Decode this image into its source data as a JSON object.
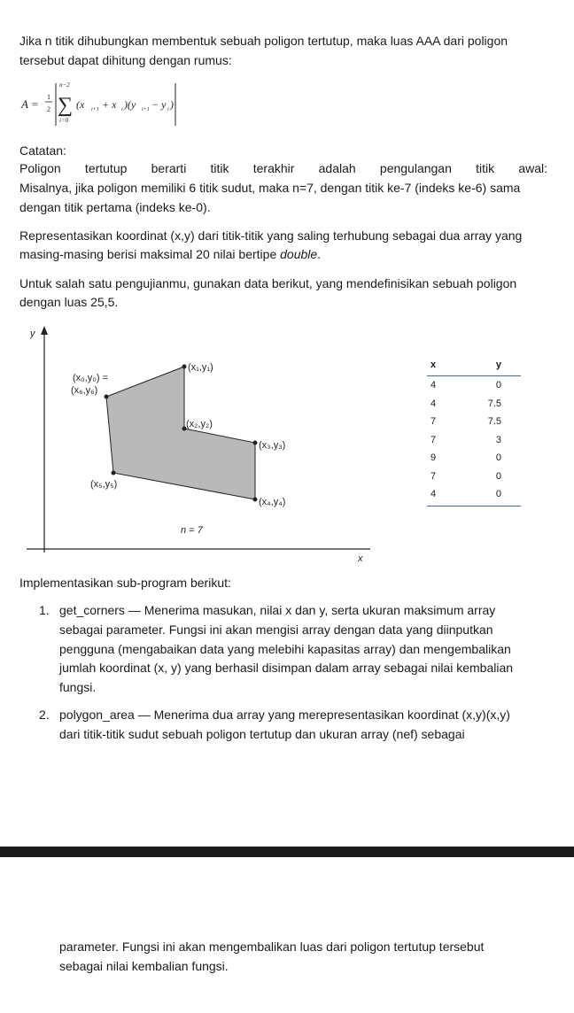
{
  "intro": {
    "line1": "Jika n titik dihubungkan membentuk sebuah poligon tertutup, maka luas AAA dari poligon",
    "line2": "tersebut dapat dihitung dengan rumus:"
  },
  "formula": {
    "lhs": "A =",
    "frac_num": "1",
    "frac_den": "2",
    "sum_upper": "n−2",
    "sum_lower": "i=0",
    "term": "(x",
    "sub_i1": "i+1",
    "plus": " + x",
    "sub_i": "i",
    "mid": ")(y",
    "minus": " − y",
    "close": ")"
  },
  "note": {
    "title": "Catatan:",
    "line1": "Poligon tertutup berarti titik terakhir adalah pengulangan titik awal:",
    "line2": "Misalnya, jika poligon memiliki 6 titik sudut, maka n=7, dengan titik ke-7 (indeks ke-6) sama",
    "line3": "dengan titik pertama (indeks ke-0)."
  },
  "represent": {
    "line1": "Representasikan koordinat (x,y) dari titik-titik yang saling terhubung sebagai dua array yang",
    "line2_pre": "masing-masing berisi maksimal 20 nilai bertipe ",
    "line2_em": "double",
    "line2_post": "."
  },
  "test": {
    "line1": "Untuk salah satu pengujianmu, gunakan data berikut, yang mendefinisikan sebuah poligon",
    "line2": "dengan luas 25,5."
  },
  "diagram": {
    "axis_y": "y",
    "axis_x": "x",
    "n_label": "n = 7",
    "labels": {
      "p0a": "(x₀,y₀) =",
      "p0b": "(x₆,y₆)",
      "p1": "(x₁,y₁)",
      "p2": "(x₂,y₂)",
      "p3": "(x₃,y₃)",
      "p4": "(x₄,y₄)",
      "p5": "(x₅,y₅)"
    },
    "fill_color": "#b9b9b9"
  },
  "table": {
    "headers": [
      "x",
      "y"
    ],
    "rows": [
      [
        "4",
        "0"
      ],
      [
        "4",
        "7.5"
      ],
      [
        "7",
        "7.5"
      ],
      [
        "7",
        "3"
      ],
      [
        "9",
        "0"
      ],
      [
        "7",
        "0"
      ],
      [
        "4",
        "0"
      ]
    ],
    "accent": "#3a6ea5"
  },
  "implement": {
    "title": "Implementasikan sub-program berikut:",
    "item1": {
      "num": "1.",
      "lines": [
        "get_corners — Menerima masukan, nilai x dan y, serta ukuran maksimum array",
        "sebagai parameter. Fungsi ini akan mengisi array dengan data yang diinputkan",
        "pengguna (mengabaikan data yang melebihi kapasitas array) dan mengembalikan",
        "jumlah koordinat (x, y) yang berhasil disimpan dalam array sebagai nilai kembalian",
        "fungsi."
      ]
    },
    "item2": {
      "num": "2.",
      "lines": [
        "polygon_area — Menerima dua array yang merepresentasikan koordinat (x,y)(x,y)",
        "dari titik-titik sudut sebuah poligon tertutup dan ukuran array (nef) sebagai"
      ],
      "cont": [
        "parameter. Fungsi ini akan mengembalikan luas dari poligon tertutup tersebut",
        "sebagai nilai kembalian fungsi."
      ]
    }
  }
}
